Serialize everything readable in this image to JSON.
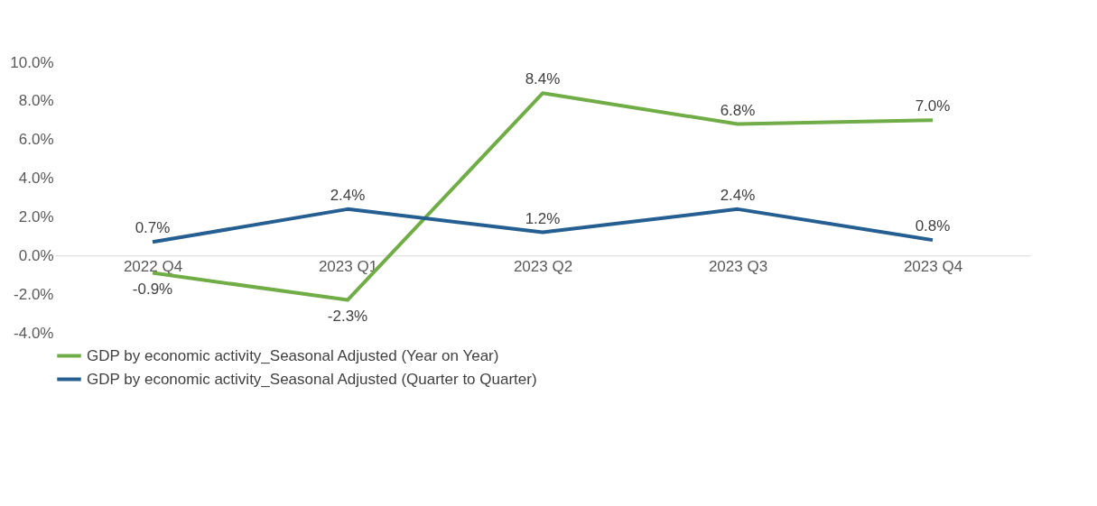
{
  "chart_data": {
    "type": "line",
    "categories": [
      "2022 Q4",
      "2023 Q1",
      "2023 Q2",
      "2023 Q3",
      "2023 Q4"
    ],
    "series": [
      {
        "name": "GDP by economic activity_Seasonal Adjusted (Year on Year)",
        "color": "#70ad47",
        "values": [
          -0.9,
          -2.3,
          8.4,
          6.8,
          7.0
        ],
        "value_labels": [
          "-0.9%",
          "-2.3%",
          "8.4%",
          "6.8%",
          "7.0%"
        ]
      },
      {
        "name": "GDP by economic activity_Seasonal Adjusted (Quarter to Quarter)",
        "color": "#255e91",
        "values": [
          0.7,
          2.4,
          1.2,
          2.4,
          0.8
        ],
        "value_labels": [
          "0.7%",
          "2.4%",
          "1.2%",
          "2.4%",
          "0.8%"
        ]
      }
    ],
    "ylim": [
      -4,
      10
    ],
    "yticks": [
      {
        "value": -4,
        "label": "-4.0%"
      },
      {
        "value": -2,
        "label": "-2.0%"
      },
      {
        "value": 0,
        "label": "0.0%"
      },
      {
        "value": 2,
        "label": "2.0%"
      },
      {
        "value": 4,
        "label": "4.0%"
      },
      {
        "value": 6,
        "label": "6.0%"
      },
      {
        "value": 8,
        "label": "8.0%"
      },
      {
        "value": 10,
        "label": "10.0%"
      }
    ],
    "grid": false,
    "legend": "bottom",
    "marker": "none",
    "line_style": "solid"
  }
}
